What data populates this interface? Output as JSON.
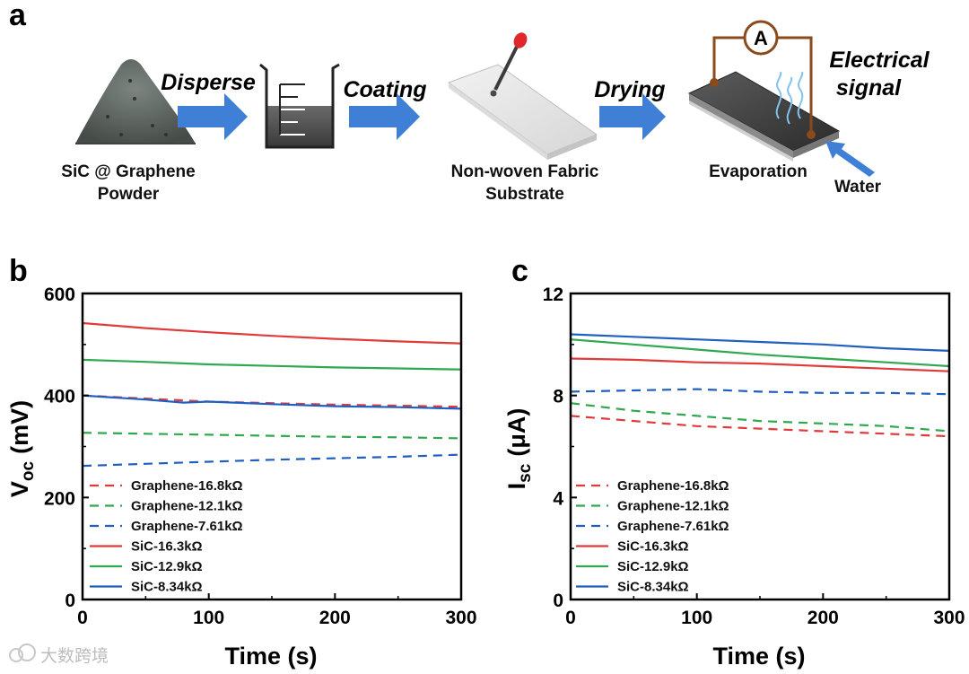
{
  "panel_a": {
    "letter": "a",
    "steps": [
      "Disperse",
      "Coating",
      "Drying"
    ],
    "powder_caption": [
      "SiC @ Graphene",
      "Powder"
    ],
    "substrate_caption": [
      "Non-woven Fabric",
      "Substrate"
    ],
    "evaporation_label": "Evaporation",
    "water_label": "Water",
    "signal_label": [
      "Electrical",
      "signal"
    ],
    "ammeter_symbol": "A"
  },
  "watermark": "大数跨境",
  "colors": {
    "red": "#e03b3b",
    "green": "#2fa84f",
    "blue": "#1f5fbf",
    "arrow": "#3f7fd6"
  },
  "chart_data": [
    {
      "panel": "b",
      "type": "line",
      "xlabel": "Time (s)",
      "ylabel_main": "V",
      "ylabel_sub": "oc",
      "ylabel_unit": "(mV)",
      "xlim": [
        0,
        300
      ],
      "ylim": [
        0,
        600
      ],
      "xticks": [
        0,
        100,
        200,
        300
      ],
      "yticks": [
        0,
        200,
        400,
        600
      ],
      "legend_position": "bottom-left",
      "series": [
        {
          "name": "Graphene-16.8kΩ",
          "color": "#e03b3b",
          "dash": true,
          "x": [
            0,
            50,
            100,
            150,
            200,
            250,
            300
          ],
          "y": [
            400,
            394,
            388,
            385,
            382,
            380,
            378
          ]
        },
        {
          "name": "Graphene-12.1kΩ",
          "color": "#2fa84f",
          "dash": true,
          "x": [
            0,
            50,
            100,
            150,
            200,
            250,
            300
          ],
          "y": [
            327,
            325,
            323,
            321,
            319,
            318,
            316
          ]
        },
        {
          "name": "Graphene-7.61kΩ",
          "color": "#1f5fbf",
          "dash": true,
          "x": [
            0,
            50,
            100,
            150,
            200,
            250,
            300
          ],
          "y": [
            262,
            266,
            270,
            274,
            277,
            280,
            284
          ]
        },
        {
          "name": "SiC-16.3kΩ",
          "color": "#e03b3b",
          "dash": false,
          "x": [
            0,
            50,
            100,
            150,
            200,
            250,
            300
          ],
          "y": [
            542,
            532,
            524,
            517,
            511,
            506,
            502
          ]
        },
        {
          "name": "SiC-12.9kΩ",
          "color": "#2fa84f",
          "dash": false,
          "x": [
            0,
            50,
            100,
            150,
            200,
            250,
            300
          ],
          "y": [
            470,
            466,
            461,
            458,
            455,
            453,
            451
          ]
        },
        {
          "name": "SiC-8.34kΩ",
          "color": "#1f5fbf",
          "dash": false,
          "x": [
            0,
            50,
            80,
            100,
            150,
            200,
            250,
            300
          ],
          "y": [
            400,
            392,
            386,
            388,
            383,
            379,
            377,
            374
          ]
        }
      ]
    },
    {
      "panel": "c",
      "type": "line",
      "xlabel": "Time (s)",
      "ylabel_main": "I",
      "ylabel_sub": "sc",
      "ylabel_unit": "(μA)",
      "xlim": [
        0,
        300
      ],
      "ylim": [
        0,
        12
      ],
      "xticks": [
        0,
        100,
        200,
        300
      ],
      "yticks": [
        0,
        4,
        8,
        12
      ],
      "legend_position": "bottom-left",
      "series": [
        {
          "name": "Graphene-16.8kΩ",
          "color": "#e03b3b",
          "dash": true,
          "x": [
            0,
            50,
            100,
            150,
            200,
            250,
            300
          ],
          "y": [
            7.2,
            7.0,
            6.8,
            6.7,
            6.6,
            6.5,
            6.4
          ]
        },
        {
          "name": "Graphene-12.1kΩ",
          "color": "#2fa84f",
          "dash": true,
          "x": [
            0,
            50,
            100,
            150,
            200,
            250,
            300
          ],
          "y": [
            7.7,
            7.4,
            7.2,
            7.0,
            6.9,
            6.8,
            6.6
          ]
        },
        {
          "name": "Graphene-7.61kΩ",
          "color": "#1f5fbf",
          "dash": true,
          "x": [
            0,
            50,
            100,
            150,
            200,
            250,
            300
          ],
          "y": [
            8.15,
            8.2,
            8.25,
            8.15,
            8.1,
            8.1,
            8.05
          ]
        },
        {
          "name": "SiC-16.3kΩ",
          "color": "#e03b3b",
          "dash": false,
          "x": [
            0,
            50,
            100,
            150,
            200,
            250,
            300
          ],
          "y": [
            9.45,
            9.4,
            9.3,
            9.25,
            9.15,
            9.05,
            8.95
          ]
        },
        {
          "name": "SiC-12.9kΩ",
          "color": "#2fa84f",
          "dash": false,
          "x": [
            0,
            50,
            100,
            150,
            200,
            250,
            300
          ],
          "y": [
            10.2,
            10.0,
            9.8,
            9.6,
            9.45,
            9.3,
            9.15
          ]
        },
        {
          "name": "SiC-8.34kΩ",
          "color": "#1f5fbf",
          "dash": false,
          "x": [
            0,
            50,
            100,
            150,
            200,
            250,
            300
          ],
          "y": [
            10.4,
            10.3,
            10.2,
            10.1,
            10.0,
            9.85,
            9.75
          ]
        }
      ]
    }
  ]
}
